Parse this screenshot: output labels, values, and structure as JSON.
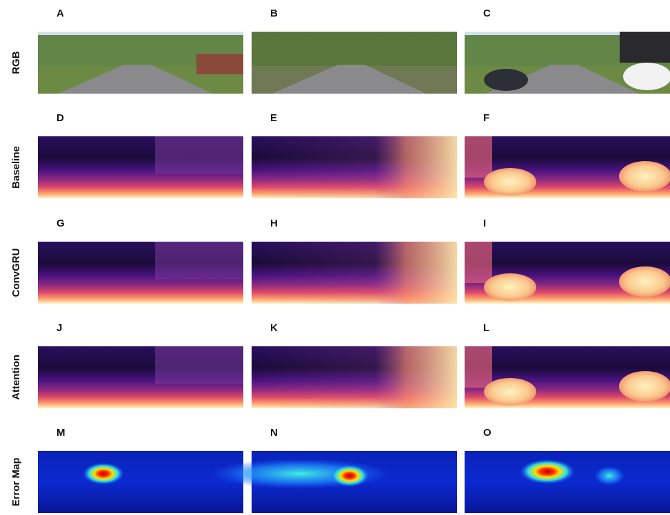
{
  "row_labels": [
    "RGB",
    "Baseline",
    "ConvGRU",
    "Attention",
    "Error Map"
  ],
  "panels": [
    [
      "A",
      "B",
      "C"
    ],
    [
      "D",
      "E",
      "F"
    ],
    [
      "G",
      "H",
      "I"
    ],
    [
      "J",
      "K",
      "L"
    ],
    [
      "M",
      "N",
      "O"
    ]
  ]
}
